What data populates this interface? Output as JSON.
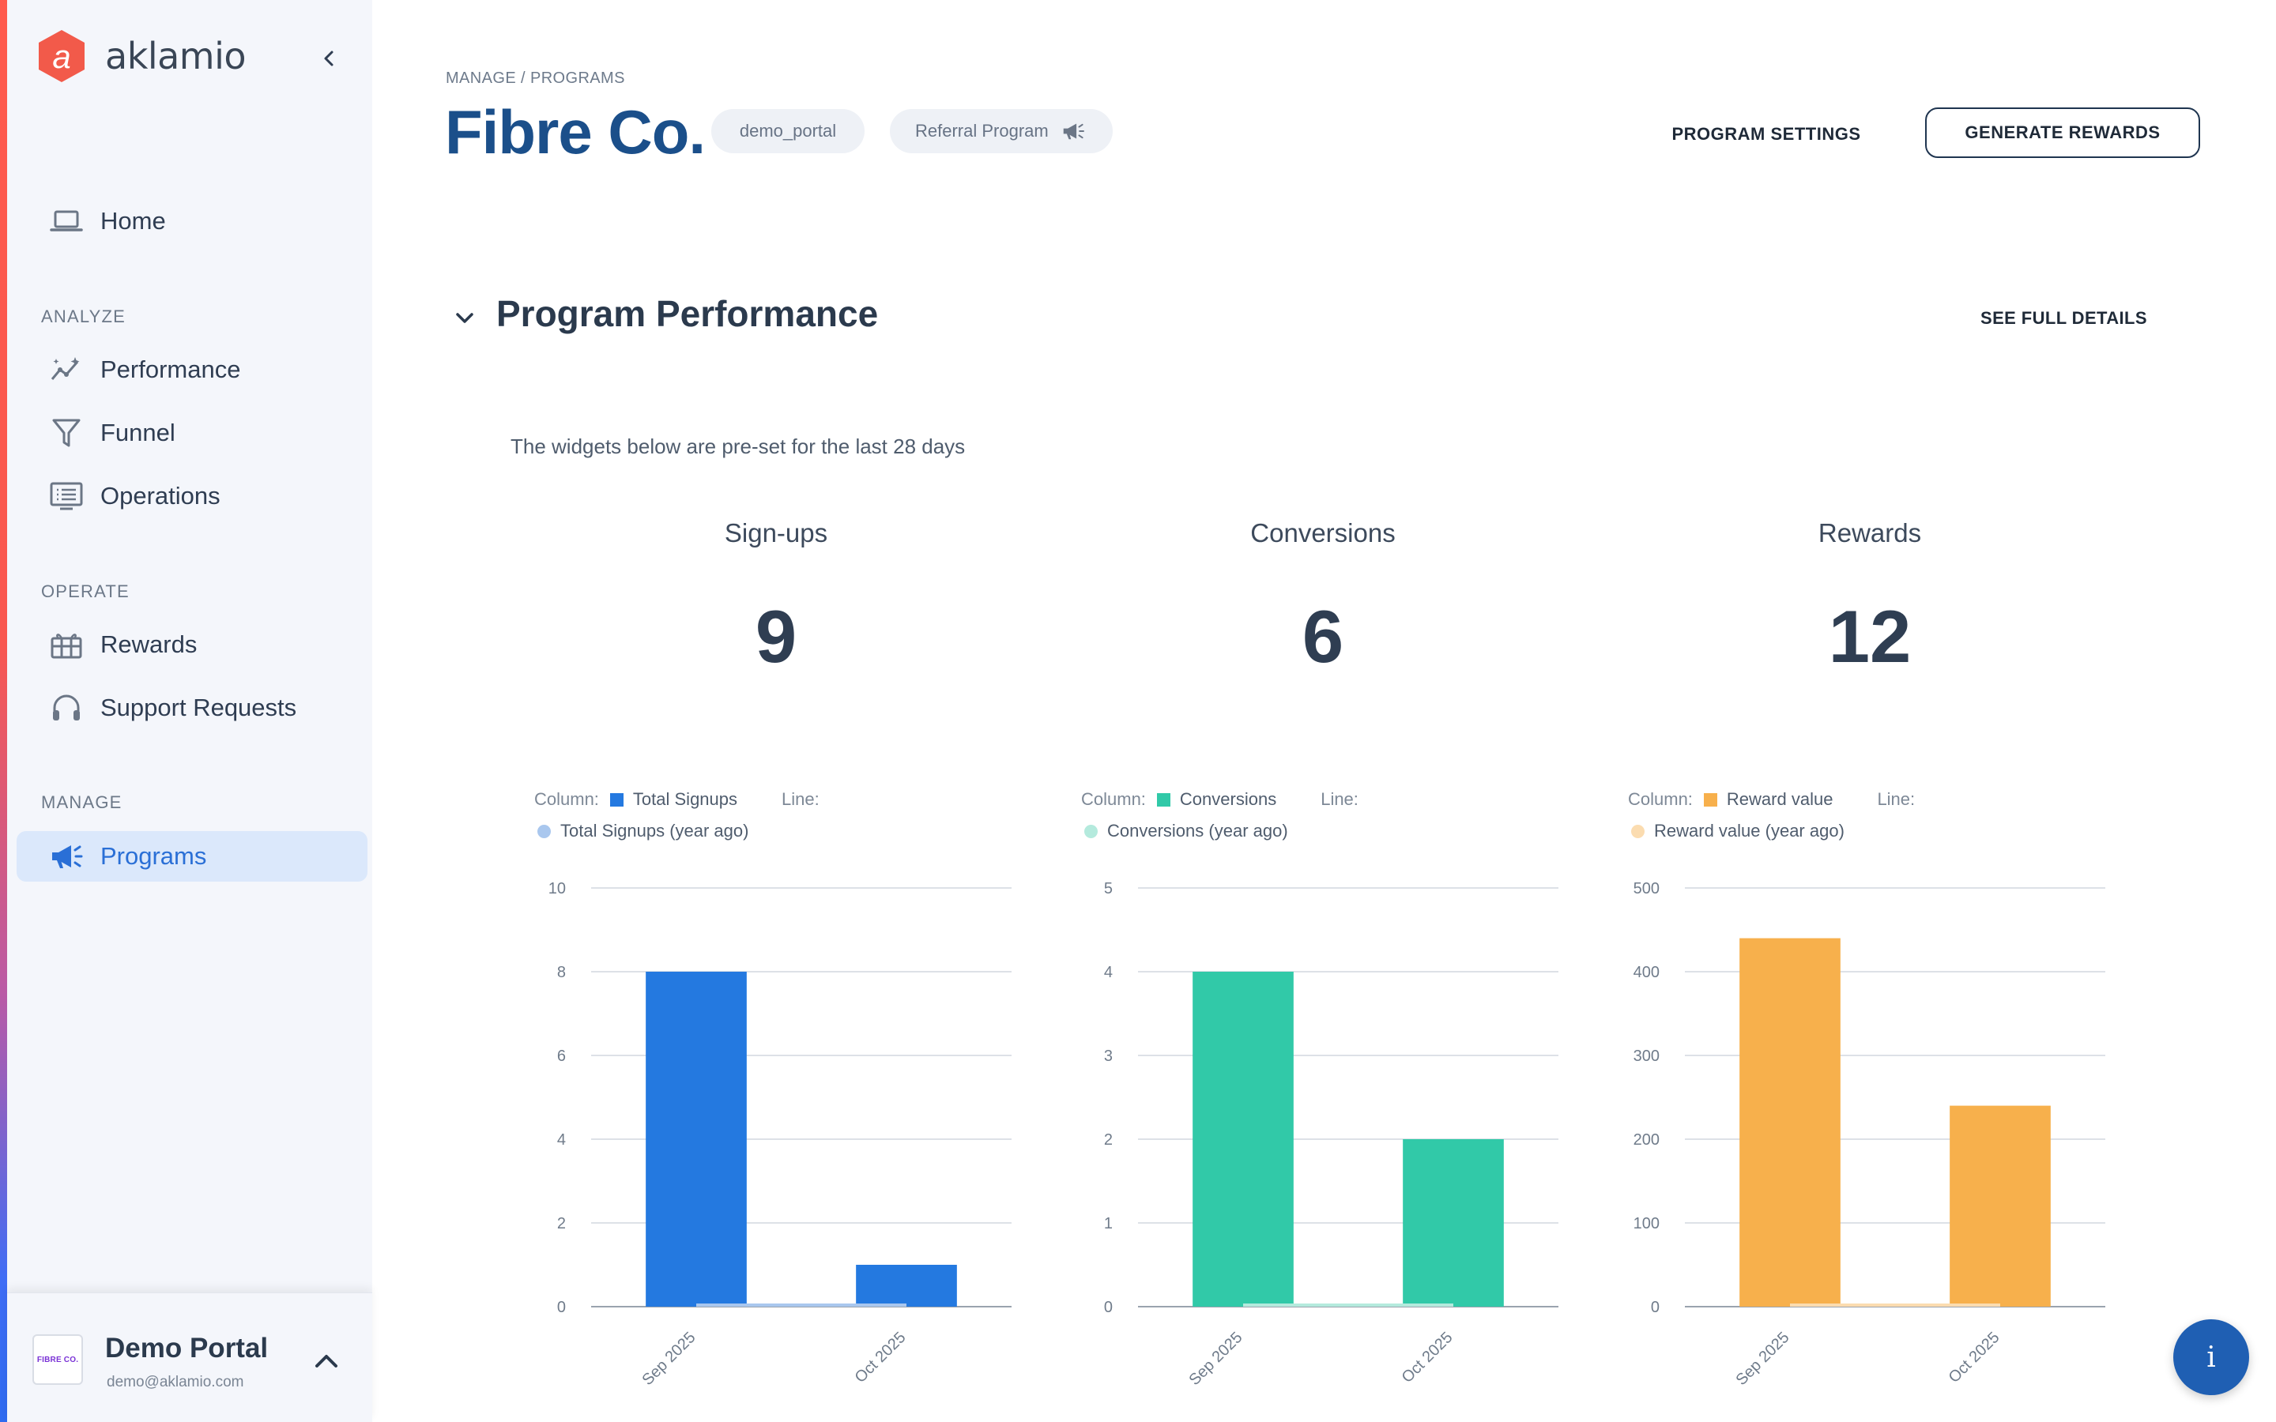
{
  "app": {
    "brand_name": "aklamio",
    "accent_color": "#f25a4a",
    "primary_color": "#1b4f8a"
  },
  "sidebar": {
    "collapse_icon": "chevron-left-icon",
    "home": {
      "label": "Home",
      "icon": "laptop-icon"
    },
    "sections": [
      {
        "label": "ANALYZE"
      },
      {
        "label": "OPERATE"
      },
      {
        "label": "MANAGE"
      }
    ],
    "items": [
      {
        "label": "Performance",
        "icon": "trend-icon"
      },
      {
        "label": "Funnel",
        "icon": "funnel-icon"
      },
      {
        "label": "Operations",
        "icon": "monitor-list-icon"
      },
      {
        "label": "Rewards",
        "icon": "gift-icon"
      },
      {
        "label": "Support Requests",
        "icon": "headset-icon"
      },
      {
        "label": "Programs",
        "icon": "megaphone-icon",
        "active": true
      }
    ],
    "account": {
      "avatar_text": "FIBRE CO.",
      "name": "Demo Portal",
      "email": "demo@aklamio.com"
    }
  },
  "header": {
    "breadcrumb": {
      "section": "MANAGE",
      "separator": " / ",
      "page": "PROGRAMS"
    },
    "title": "Fibre Co.",
    "chip_slug": "demo_portal",
    "chip_program": "Referral Program",
    "settings_label": "PROGRAM SETTINGS",
    "generate_label": "GENERATE REWARDS"
  },
  "performance": {
    "title": "Program Performance",
    "see_details": "SEE FULL DETAILS",
    "subtitle": "The widgets below are pre-set for the last 28 days",
    "stats": [
      {
        "label": "Sign-ups",
        "value": "9"
      },
      {
        "label": "Conversions",
        "value": "6"
      },
      {
        "label": "Rewards",
        "value": "12"
      }
    ],
    "legend_column_label": "Column:",
    "legend_line_label": "Line:"
  },
  "chart_data": [
    {
      "type": "bar",
      "categories": [
        "Sep 2025",
        "Oct 2025"
      ],
      "series": [
        {
          "name": "Total Signups",
          "values": [
            8,
            1
          ],
          "color": "#2479e0",
          "kind": "column"
        },
        {
          "name": "Total Signups (year ago)",
          "values": [
            0,
            0
          ],
          "color": "#a9c7ee",
          "kind": "line"
        }
      ],
      "ylim": [
        0,
        10
      ],
      "yticks": [
        0,
        2,
        4,
        6,
        8,
        10
      ],
      "grid": true,
      "legend_position": "top"
    },
    {
      "type": "bar",
      "categories": [
        "Sep 2025",
        "Oct 2025"
      ],
      "series": [
        {
          "name": "Conversions",
          "values": [
            4,
            2
          ],
          "color": "#31c9a8",
          "kind": "column"
        },
        {
          "name": "Conversions (year ago)",
          "values": [
            0,
            0
          ],
          "color": "#b4eadd",
          "kind": "line"
        }
      ],
      "ylim": [
        0,
        5
      ],
      "yticks": [
        0,
        1,
        2,
        3,
        4,
        5
      ],
      "grid": true,
      "legend_position": "top"
    },
    {
      "type": "bar",
      "categories": [
        "Sep 2025",
        "Oct 2025"
      ],
      "series": [
        {
          "name": "Reward value",
          "values": [
            440,
            240
          ],
          "color": "#f7b04c",
          "kind": "column"
        },
        {
          "name": "Reward value (year ago)",
          "values": [
            0,
            0
          ],
          "color": "#fbdcb0",
          "kind": "line"
        }
      ],
      "ylim": [
        0,
        500
      ],
      "yticks": [
        0,
        100,
        200,
        300,
        400,
        500
      ],
      "grid": true,
      "legend_position": "top"
    }
  ],
  "fab": {
    "label": "i",
    "icon": "info-icon"
  }
}
